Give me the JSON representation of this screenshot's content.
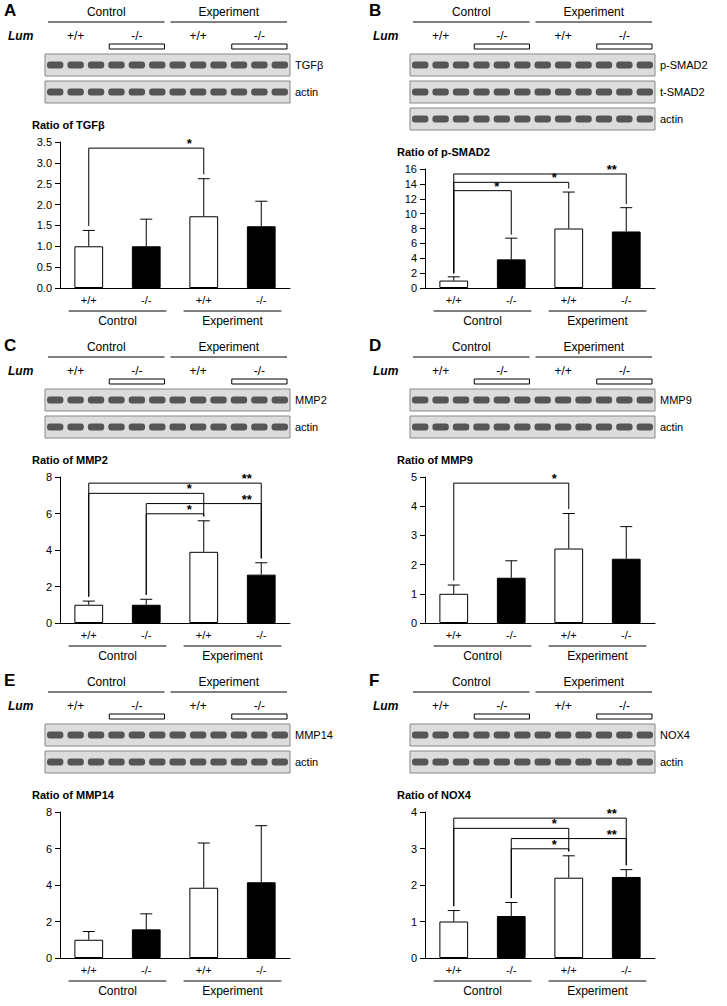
{
  "chart_data": [
    {
      "type": "bar",
      "panel": "A",
      "title": "Ratio of TGFβ",
      "categories": [
        "+/+",
        "-/-",
        "+/+",
        "-/-"
      ],
      "groups": [
        "Control",
        "Experiment"
      ],
      "values": [
        1.0,
        1.0,
        1.72,
        1.48
      ],
      "errors": [
        0.38,
        0.65,
        0.9,
        0.6
      ],
      "colors": [
        "#ffffff",
        "#000000",
        "#ffffff",
        "#000000"
      ],
      "ylim": [
        0,
        3.5
      ],
      "yticks": [
        {
          "value": 0,
          "label": "0.0"
        },
        0.5,
        {
          "value": 1,
          "label": "1.0"
        },
        1.5,
        {
          "value": 2,
          "label": "2.0"
        },
        2.5,
        {
          "value": 3,
          "label": "3.0"
        },
        3.5
      ],
      "grid": false,
      "significance": [
        {
          "from": 0,
          "to": 2,
          "label": "*"
        }
      ],
      "blot": {
        "genotype_label": "Lum",
        "rows": [
          "TGFβ",
          "actin"
        ]
      }
    },
    {
      "type": "bar",
      "panel": "B",
      "title": "Ratio of p-SMAD2",
      "categories": [
        "+/+",
        "-/-",
        "+/+",
        "-/-"
      ],
      "groups": [
        "Control",
        "Experiment"
      ],
      "values": [
        1.0,
        3.85,
        8.0,
        7.6
      ],
      "errors": [
        0.5,
        2.85,
        4.9,
        3.2
      ],
      "colors": [
        "#ffffff",
        "#000000",
        "#ffffff",
        "#000000"
      ],
      "ylim": [
        0,
        16
      ],
      "yticks": [
        0,
        2,
        4,
        6,
        8,
        10,
        12,
        14,
        16
      ],
      "grid": false,
      "significance": [
        {
          "from": 0,
          "to": 3,
          "label": "**"
        },
        {
          "from": 0,
          "to": 2,
          "label": "*"
        },
        {
          "from": 0,
          "to": 1,
          "label": "*"
        }
      ],
      "blot": {
        "genotype_label": "Lum",
        "rows": [
          "p-SMAD2",
          "t-SMAD2",
          "actin"
        ]
      }
    },
    {
      "type": "bar",
      "panel": "C",
      "title": "Ratio of MMP2",
      "categories": [
        "+/+",
        "-/-",
        "+/+",
        "-/-"
      ],
      "groups": [
        "Control",
        "Experiment"
      ],
      "values": [
        1.0,
        1.0,
        3.9,
        2.65
      ],
      "errors": [
        0.2,
        0.3,
        1.7,
        0.65
      ],
      "colors": [
        "#ffffff",
        "#000000",
        "#ffffff",
        "#000000"
      ],
      "ylim": [
        0,
        8
      ],
      "yticks": [
        0,
        2,
        4,
        6,
        8
      ],
      "grid": false,
      "significance": [
        {
          "from": 0,
          "to": 3,
          "label": "**"
        },
        {
          "from": 0,
          "to": 2,
          "label": "*"
        },
        {
          "from": 1,
          "to": 3,
          "label": "**"
        },
        {
          "from": 1,
          "to": 2,
          "label": "*"
        }
      ],
      "blot": {
        "genotype_label": "Lum",
        "rows": [
          "MMP2",
          "actin"
        ]
      }
    },
    {
      "type": "bar",
      "panel": "D",
      "title": "Ratio of MMP9",
      "categories": [
        "+/+",
        "-/-",
        "+/+",
        "-/-"
      ],
      "groups": [
        "Control",
        "Experiment"
      ],
      "values": [
        1.0,
        1.55,
        2.55,
        2.2
      ],
      "errors": [
        0.3,
        0.58,
        1.2,
        1.1
      ],
      "colors": [
        "#ffffff",
        "#000000",
        "#ffffff",
        "#000000"
      ],
      "ylim": [
        0,
        5
      ],
      "yticks": [
        0,
        1,
        2,
        3,
        4,
        5
      ],
      "grid": false,
      "significance": [
        {
          "from": 0,
          "to": 2,
          "label": "*"
        }
      ],
      "blot": {
        "genotype_label": "Lum",
        "rows": [
          "MMP9",
          "actin"
        ]
      }
    },
    {
      "type": "bar",
      "panel": "E",
      "title": "Ratio of MMP14",
      "categories": [
        "+/+",
        "-/-",
        "+/+",
        "-/-"
      ],
      "groups": [
        "Control",
        "Experiment"
      ],
      "values": [
        1.0,
        1.57,
        3.85,
        4.15
      ],
      "errors": [
        0.45,
        0.85,
        2.45,
        3.1
      ],
      "colors": [
        "#ffffff",
        "#000000",
        "#ffffff",
        "#000000"
      ],
      "ylim": [
        0,
        8
      ],
      "yticks": [
        0,
        2,
        4,
        6,
        8
      ],
      "grid": false,
      "significance": [],
      "blot": {
        "genotype_label": "Lum",
        "rows": [
          "MMP14",
          "actin"
        ]
      }
    },
    {
      "type": "bar",
      "panel": "F",
      "title": "Ratio of NOX4",
      "categories": [
        "+/+",
        "-/-",
        "+/+",
        "-/-"
      ],
      "groups": [
        "Control",
        "Experiment"
      ],
      "values": [
        1.0,
        1.15,
        2.2,
        2.22
      ],
      "errors": [
        0.3,
        0.37,
        0.6,
        0.2
      ],
      "colors": [
        "#ffffff",
        "#000000",
        "#ffffff",
        "#000000"
      ],
      "ylim": [
        0,
        4
      ],
      "yticks": [
        0,
        1,
        2,
        3,
        4
      ],
      "grid": false,
      "significance": [
        {
          "from": 0,
          "to": 3,
          "label": "**"
        },
        {
          "from": 0,
          "to": 2,
          "label": "*"
        },
        {
          "from": 1,
          "to": 3,
          "label": "**"
        },
        {
          "from": 1,
          "to": 2,
          "label": "*"
        }
      ],
      "blot": {
        "genotype_label": "Lum",
        "rows": [
          "NOX4",
          "actin"
        ]
      }
    }
  ]
}
